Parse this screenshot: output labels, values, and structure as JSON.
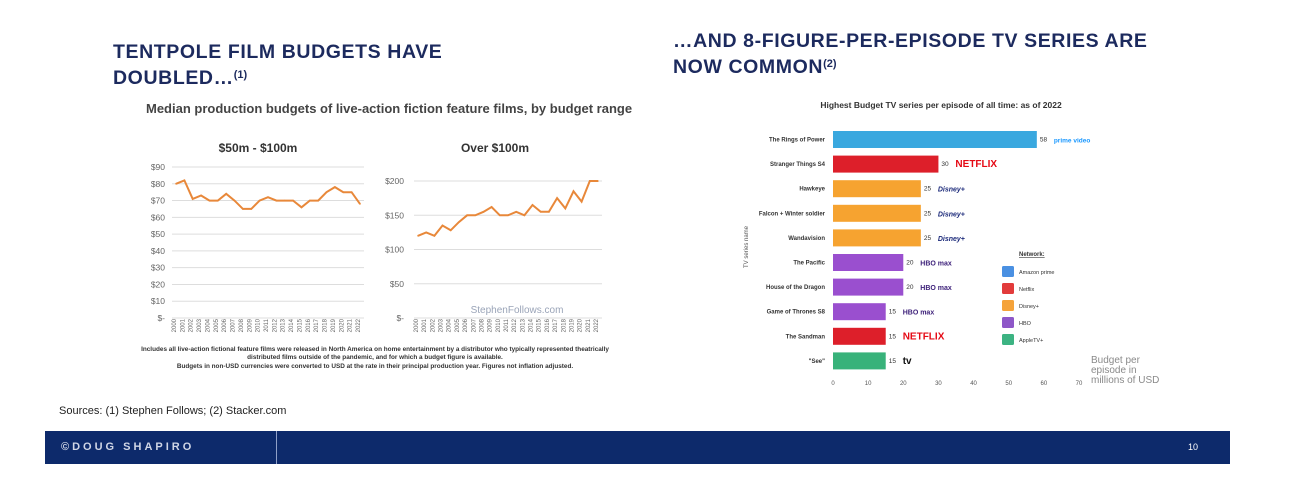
{
  "left_heading": {
    "text": "TENTPOLE FILM BUDGETS HAVE DOUBLED…",
    "note": "(1)"
  },
  "right_heading": {
    "text": "…AND 8-FIGURE-PER-EPISODE TV SERIES ARE NOW COMMON",
    "note": "(2)"
  },
  "left_panel": {
    "title": "Median production budgets of live-action fiction feature films, by budget range",
    "watermark": "StephenFollows.com",
    "notes": [
      "Includes all live-action fictional feature films were released in North America on home entertainment by a distributor who typically represented theatrically distributed films outside of the pandemic, and for which a budget figure is available.",
      "Budgets in non-USD currencies were converted to USD at the rate in their principal production year. Figures not inflation adjusted."
    ]
  },
  "chart_data": [
    {
      "type": "line",
      "title": "$50m - $100m",
      "x": [
        "2000",
        "2001",
        "2002",
        "2003",
        "2004",
        "2005",
        "2006",
        "2007",
        "2008",
        "2009",
        "2010",
        "2011",
        "2012",
        "2013",
        "2014",
        "2015",
        "2016",
        "2017",
        "2018",
        "2019",
        "2020",
        "2021",
        "2022"
      ],
      "values": [
        80,
        82,
        71,
        73,
        70,
        70,
        74,
        70,
        65,
        65,
        70,
        72,
        70,
        70,
        70,
        66,
        70,
        70,
        75,
        78,
        75,
        75,
        68
      ],
      "y_ticks": [
        "$90",
        "$80",
        "$70",
        "$60",
        "$50",
        "$40",
        "$30",
        "$20",
        "$10",
        "$-"
      ],
      "ylim": [
        0,
        90
      ],
      "color": "#e8883a"
    },
    {
      "type": "line",
      "title": "Over $100m",
      "x": [
        "2000",
        "2001",
        "2002",
        "2003",
        "2004",
        "2005",
        "2006",
        "2007",
        "2008",
        "2009",
        "2010",
        "2011",
        "2012",
        "2013",
        "2014",
        "2015",
        "2016",
        "2017",
        "2018",
        "2019",
        "2020",
        "2021",
        "2022"
      ],
      "values": [
        120,
        125,
        120,
        135,
        128,
        140,
        150,
        150,
        155,
        162,
        150,
        150,
        155,
        150,
        165,
        155,
        155,
        175,
        160,
        185,
        170,
        200,
        200
      ],
      "y_ticks": [
        "$200",
        "$150",
        "$100",
        "$50",
        "$-"
      ],
      "ylim": [
        0,
        200
      ],
      "color": "#e8883a"
    },
    {
      "type": "bar",
      "title": "Highest Budget TV series per episode of all time: as of 2022",
      "ylabel": "TV series name",
      "xlabel": "Budget per episode in millions of USD",
      "x_ticks": [
        "0",
        "10",
        "20",
        "30",
        "40",
        "50",
        "60",
        "70"
      ],
      "xlim": [
        0,
        70
      ],
      "categories": [
        "The Rings of Power",
        "Stranger Things S4",
        "Hawkeye",
        "Falcon + Winter soldier",
        "Wandavision",
        "The Pacific",
        "House of the Dragon",
        "Game of Thrones S8",
        "The Sandman",
        "\"See\""
      ],
      "values": [
        58,
        30,
        25,
        25,
        25,
        20,
        20,
        15,
        15,
        15
      ],
      "networks": [
        "Amazon prime",
        "Netflix",
        "Disney+",
        "Disney+",
        "Disney+",
        "HBO",
        "HBO",
        "HBO",
        "Netflix",
        "AppleTV+"
      ],
      "logos": [
        "prime video",
        "NETFLIX",
        "Disney+",
        "Disney+",
        "Disney+",
        "HBO max",
        "HBO max",
        "HBO max",
        "NETFLIX",
        "tv"
      ],
      "legend_title": "Network:",
      "legend": [
        {
          "name": "Amazon prime",
          "color": "#4a90e2"
        },
        {
          "name": "Netflix",
          "color": "#e23b3b"
        },
        {
          "name": "Disney+",
          "color": "#f5a33a"
        },
        {
          "name": "HBO",
          "color": "#8e57c8"
        },
        {
          "name": "AppleTV+",
          "color": "#3cb382"
        }
      ],
      "colors": {
        "Amazon prime": "#3aa8df",
        "Netflix": "#dd1f2a",
        "Disney+": "#f6a330",
        "HBO": "#9a4fcf",
        "AppleTV+": "#38b27a"
      }
    }
  ],
  "sources": "Sources: (1) Stephen Follows; (2) Stacker.com",
  "footer": {
    "brand": "©DOUG SHAPIRO",
    "page": "10"
  }
}
